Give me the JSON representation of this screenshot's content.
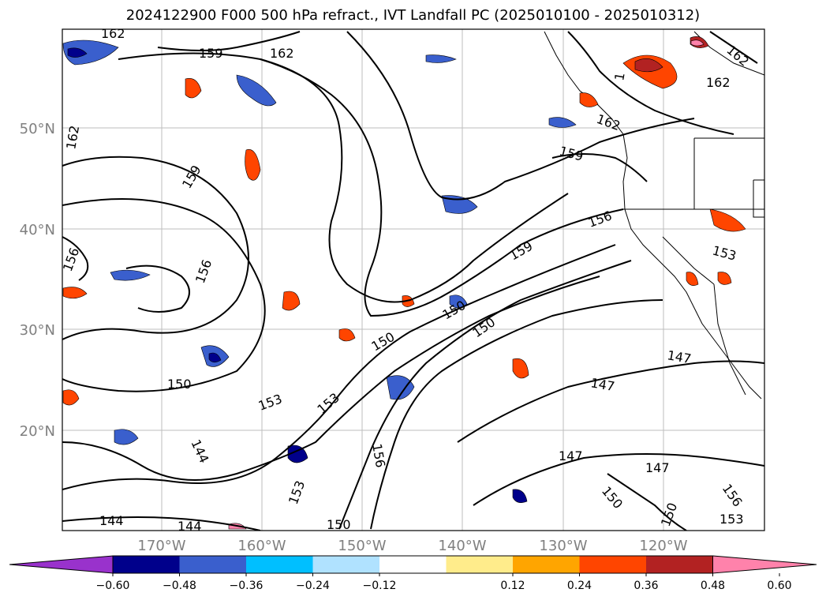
{
  "title": "2024122900 F000 500 hPa refract., IVT Landfall PC (2025010100 - 2025010312)",
  "latitude_labels": [
    "50°N",
    "40°N",
    "30°N",
    "20°N"
  ],
  "longitude_labels": [
    "170°W",
    "160°W",
    "150°W",
    "140°W",
    "130°W",
    "120°W"
  ],
  "contour_labels": [
    "162",
    "159",
    "162",
    "162",
    "162",
    "162",
    "162",
    "159",
    "159",
    "156",
    "156",
    "159",
    "156",
    "150",
    "150",
    "150",
    "150",
    "153",
    "153",
    "153",
    "147",
    "147",
    "147",
    "147",
    "144",
    "144",
    "144",
    "150",
    "150",
    "156",
    "153",
    "1",
    "156",
    "153",
    "150"
  ],
  "colorbar": {
    "ticks": [
      "−0.60",
      "−0.48",
      "−0.36",
      "−0.24",
      "−0.12",
      "0.12",
      "0.24",
      "0.36",
      "0.48",
      "0.60"
    ],
    "colors": [
      "#9932CC",
      "#00008B",
      "#3A5FCD",
      "#00BFFF",
      "#B0E2FF",
      "#FFFFFF",
      "#FFEC8B",
      "#FFA500",
      "#FF4500",
      "#B22222",
      "#FF82AB"
    ]
  }
}
